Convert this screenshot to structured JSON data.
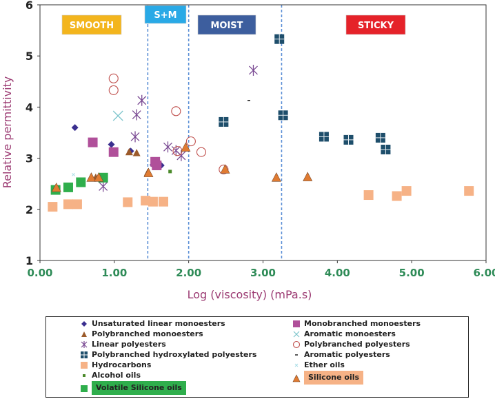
{
  "chart_data": {
    "type": "scatter",
    "title": "",
    "xlabel": "Log (viscosity) (mPa.s)",
    "ylabel": "Relative permittivity",
    "xlim": [
      0,
      6
    ],
    "ylim": [
      1,
      6
    ],
    "x_ticks": [
      "0.00",
      "1.00",
      "2.00",
      "3.00",
      "4.00",
      "5.00",
      "6.00"
    ],
    "y_ticks": [
      "1",
      "2",
      "3",
      "4",
      "5",
      "6"
    ],
    "colors": {
      "axis_label": "#9b3a72",
      "x_ticks": "#2e8b57",
      "divider": "#5b8fd6"
    },
    "regions": [
      {
        "label": "SMOOTH",
        "x_from": 0,
        "x_to": 1.45,
        "label_color": "#f3b51d",
        "text_color": "#ffffff"
      },
      {
        "label": "S+M",
        "x_from": 1.45,
        "x_to": 2.0,
        "label_color": "#29a9e6",
        "text_color": "#ffffff"
      },
      {
        "label": "MOIST",
        "x_from": 2.0,
        "x_to": 3.25,
        "label_color": "#3d5e9e",
        "text_color": "#ffffff"
      },
      {
        "label": "STICKY",
        "x_from": 3.25,
        "x_to": 6.0,
        "label_color": "#e52229",
        "text_color": "#ffffff"
      }
    ],
    "dividers": [
      1.45,
      2.0,
      3.25
    ],
    "series": [
      {
        "name": "Unsaturated linear monoesters",
        "marker": "diamond",
        "color": "#3a2f8f",
        "points": [
          [
            0.47,
            3.6
          ],
          [
            0.96,
            3.27
          ],
          [
            1.22,
            3.14
          ],
          [
            1.52,
            2.87
          ],
          [
            1.63,
            2.86
          ]
        ]
      },
      {
        "name": "Polybranched monoesters",
        "marker": "triangle",
        "color": "#9b5a2a",
        "points": [
          [
            0.75,
            2.62
          ],
          [
            1.2,
            3.12
          ],
          [
            1.3,
            3.1
          ],
          [
            1.45,
            2.72
          ],
          [
            1.55,
            2.9
          ]
        ]
      },
      {
        "name": "Linear polyesters",
        "marker": "asterisk",
        "color": "#7a4a93",
        "points": [
          [
            0.85,
            2.45
          ],
          [
            1.28,
            3.42
          ],
          [
            1.3,
            3.85
          ],
          [
            1.37,
            4.13
          ],
          [
            1.72,
            3.22
          ],
          [
            1.83,
            3.15
          ],
          [
            1.9,
            3.05
          ],
          [
            2.87,
            4.72
          ]
        ]
      },
      {
        "name": "Polybranched hydroxylated polyesters",
        "marker": "square-plus",
        "color": "#1e4e6b",
        "points": [
          [
            2.47,
            3.71
          ],
          [
            3.22,
            5.33
          ],
          [
            3.27,
            3.84
          ],
          [
            3.82,
            3.42
          ],
          [
            4.15,
            3.36
          ],
          [
            4.58,
            3.4
          ],
          [
            4.65,
            3.17
          ]
        ]
      },
      {
        "name": "Hydrocarbons",
        "marker": "square",
        "color": "#f6b286",
        "points": [
          [
            0.17,
            2.05
          ],
          [
            0.38,
            2.1
          ],
          [
            0.5,
            2.1
          ],
          [
            1.18,
            2.14
          ],
          [
            1.42,
            2.17
          ],
          [
            1.52,
            2.15
          ],
          [
            1.66,
            2.15
          ],
          [
            4.42,
            2.28
          ],
          [
            4.8,
            2.26
          ],
          [
            4.93,
            2.36
          ],
          [
            5.77,
            2.36
          ]
        ]
      },
      {
        "name": "Alcohol oils",
        "marker": "small-square",
        "color": "#4a8a2a",
        "points": [
          [
            1.75,
            2.74
          ]
        ]
      },
      {
        "name": "Volatile Silicone oils",
        "marker": "square",
        "color": "#2fae4c",
        "points": [
          [
            0.21,
            2.38
          ],
          [
            0.38,
            2.43
          ],
          [
            0.55,
            2.53
          ],
          [
            0.85,
            2.62
          ]
        ]
      },
      {
        "name": "Monobranched monoesters",
        "marker": "square",
        "color": "#b0509a",
        "points": [
          [
            0.71,
            3.31
          ],
          [
            0.99,
            3.12
          ],
          [
            1.55,
            2.93
          ],
          [
            1.57,
            2.86
          ]
        ]
      },
      {
        "name": "Aromatic monoesters",
        "marker": "cross",
        "color": "#7ec5cc",
        "points": [
          [
            1.05,
            3.83
          ]
        ]
      },
      {
        "name": "Polybranched polyesters",
        "marker": "circle",
        "color": "#c0504d",
        "points": [
          [
            0.99,
            4.56
          ],
          [
            0.99,
            4.33
          ],
          [
            1.83,
            3.92
          ],
          [
            1.85,
            3.14
          ],
          [
            2.03,
            3.33
          ],
          [
            2.17,
            3.12
          ],
          [
            2.47,
            2.78
          ]
        ]
      },
      {
        "name": "Aromatic polyesters",
        "marker": "dash",
        "color": "#222222",
        "points": [
          [
            2.81,
            4.13
          ]
        ]
      },
      {
        "name": "Ether oils",
        "marker": "tiny-cross",
        "color": "#a8dde6",
        "points": [
          [
            0.45,
            2.68
          ]
        ]
      },
      {
        "name": "Silicone oils",
        "marker": "triangle-large",
        "color": "#e07b32",
        "points": [
          [
            0.22,
            2.42
          ],
          [
            0.69,
            2.62
          ],
          [
            0.79,
            2.62
          ],
          [
            1.46,
            2.71
          ],
          [
            1.96,
            3.21
          ],
          [
            2.49,
            2.78
          ],
          [
            3.18,
            2.62
          ],
          [
            3.6,
            2.63
          ]
        ]
      }
    ]
  },
  "legend": {
    "items": [
      {
        "label": "Unsaturated linear monoesters"
      },
      {
        "label": "Polybranched monoesters"
      },
      {
        "label": "Linear polyesters"
      },
      {
        "label": "Polybranched hydroxylated polyesters"
      },
      {
        "label": "Hydrocarbons"
      },
      {
        "label": "Alcohol oils"
      },
      {
        "label": "Volatile Silicone oils",
        "highlight": "#2fae4c"
      },
      {
        "label": "Monobranched monoesters"
      },
      {
        "label": "Aromatic monoesters"
      },
      {
        "label": "Polybranched polyesters"
      },
      {
        "label": "Aromatic polyesters"
      },
      {
        "label": "Ether oils"
      },
      {
        "label": "Silicone oils",
        "highlight": "#f6b286"
      }
    ]
  }
}
